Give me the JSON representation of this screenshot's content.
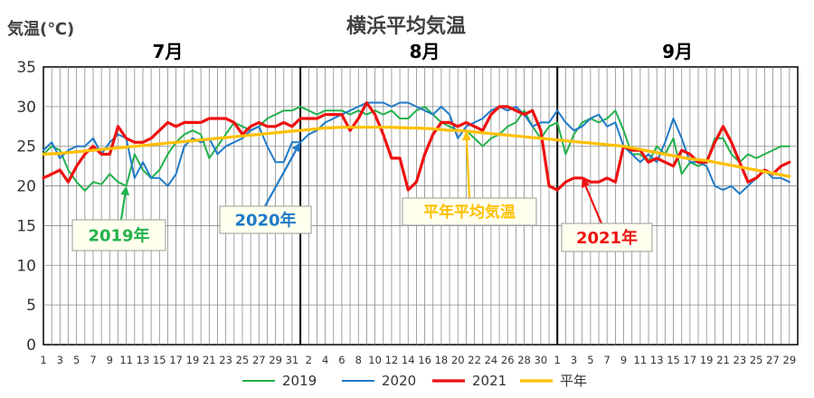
{
  "chart_data": {
    "type": "line",
    "title": "横浜平均気温",
    "ylabel": "気温(℃)",
    "ylim": [
      0,
      35
    ],
    "yticks": [
      0,
      5,
      10,
      15,
      20,
      25,
      30,
      35
    ],
    "grid": true,
    "legend_position": "bottom",
    "months": [
      "7月",
      "8月",
      "9月"
    ],
    "month_lengths": [
      31,
      31,
      30
    ],
    "x_tick_labels": [
      [
        "1",
        "3",
        "5",
        "7",
        "9",
        "11",
        "13",
        "15",
        "17",
        "19",
        "21",
        "23",
        "25",
        "27",
        "29",
        "31"
      ],
      [
        "2",
        "4",
        "6",
        "8",
        "10",
        "12",
        "14",
        "16",
        "18",
        "20",
        "22",
        "24",
        "26",
        "28",
        "30"
      ],
      [
        "1",
        "3",
        "5",
        "7",
        "9",
        "11",
        "13",
        "15",
        "17",
        "19",
        "21",
        "23",
        "25",
        "27",
        "29"
      ]
    ],
    "series": [
      {
        "name": "2019",
        "color": "#22b24c",
        "width": 2,
        "values": [
          24.0,
          25.0,
          24.5,
          22.0,
          20.5,
          19.4,
          20.5,
          20.2,
          21.5,
          20.5,
          20.0,
          24.0,
          22.0,
          21.0,
          22.0,
          24.0,
          25.5,
          26.5,
          27.0,
          26.5,
          23.5,
          25.0,
          26.5,
          28.0,
          27.5,
          27.0,
          27.5,
          28.5,
          29.0,
          29.5,
          29.5,
          30.0,
          29.5,
          29.0,
          29.5,
          29.5,
          29.5,
          29.0,
          29.5,
          29.0,
          29.5,
          29.0,
          29.5,
          28.5,
          28.5,
          29.5,
          30.0,
          29.0,
          28.0,
          27.5,
          27.0,
          27.0,
          26.0,
          25.0,
          26.0,
          26.5,
          27.5,
          28.0,
          29.5,
          27.5,
          26.0,
          27.5,
          28.0,
          24.0,
          26.5,
          28.0,
          28.5,
          28.0,
          28.5,
          29.5,
          27.0,
          24.0,
          24.0,
          23.0,
          25.0,
          24.0,
          26.0,
          21.5,
          23.0,
          22.5,
          23.0,
          26.0,
          26.0,
          24.0,
          23.0,
          24.0,
          23.5,
          24.0,
          24.5,
          25.0,
          25.0
        ]
      },
      {
        "name": "2020",
        "color": "#1f7ac8",
        "width": 2,
        "values": [
          24.5,
          25.5,
          23.5,
          24.5,
          25.0,
          25.0,
          26.0,
          24.0,
          25.5,
          26.5,
          26.0,
          21.0,
          23.0,
          21.0,
          21.0,
          20.0,
          21.5,
          25.0,
          26.0,
          25.5,
          26.0,
          24.0,
          25.0,
          25.5,
          26.0,
          27.0,
          27.5,
          25.0,
          23.0,
          23.0,
          25.5,
          25.5,
          26.5,
          27.0,
          28.0,
          28.5,
          29.0,
          29.5,
          30.0,
          30.5,
          30.5,
          30.5,
          30.0,
          30.5,
          30.5,
          30.0,
          29.5,
          29.0,
          30.0,
          29.0,
          26.0,
          27.5,
          28.0,
          28.5,
          29.5,
          30.0,
          29.5,
          30.0,
          29.0,
          27.5,
          28.0,
          28.0,
          29.5,
          28.0,
          27.0,
          27.5,
          28.5,
          29.0,
          27.5,
          28.0,
          25.0,
          24.0,
          23.0,
          24.0,
          23.0,
          25.5,
          28.5,
          26.0,
          23.0,
          23.0,
          22.5,
          20.0,
          19.5,
          20.0,
          19.0,
          20.0,
          21.0,
          22.0,
          21.0,
          21.0,
          20.5
        ]
      },
      {
        "name": "2021",
        "color": "#ee1111",
        "width": 3.2,
        "values": [
          21.0,
          21.5,
          22.0,
          20.5,
          22.5,
          24.0,
          25.0,
          24.0,
          24.0,
          27.5,
          26.0,
          25.5,
          25.5,
          26.0,
          27.0,
          28.0,
          27.5,
          28.0,
          28.0,
          28.0,
          28.5,
          28.5,
          28.5,
          28.0,
          26.5,
          27.5,
          28.0,
          27.5,
          27.5,
          28.0,
          27.5,
          28.5,
          28.5,
          28.5,
          29.0,
          29.0,
          29.0,
          27.0,
          28.5,
          30.5,
          29.0,
          26.5,
          23.5,
          23.5,
          19.5,
          20.5,
          24.0,
          26.5,
          28.0,
          28.0,
          27.5,
          28.0,
          27.5,
          27.0,
          29.0,
          30.0,
          30.0,
          29.5,
          29.0,
          29.5,
          27.0,
          20.0,
          19.5,
          20.5,
          21.0,
          21.0,
          20.5,
          20.5,
          21.0,
          20.5,
          25.0,
          24.5,
          24.5,
          23.0,
          23.5,
          23.0,
          22.5,
          24.5,
          24.0,
          23.0,
          23.0,
          25.5,
          27.5,
          25.5,
          23.0,
          20.5,
          21.0,
          22.0,
          21.5,
          22.5,
          23.0
        ]
      },
      {
        "name": "平年",
        "color": "#ffc000",
        "width": 3.2,
        "values": [
          24.0,
          24.05,
          24.1,
          24.2,
          24.3,
          24.4,
          24.5,
          24.6,
          24.7,
          24.8,
          24.9,
          25.0,
          25.1,
          25.2,
          25.3,
          25.4,
          25.5,
          25.6,
          25.7,
          25.8,
          25.9,
          26.0,
          26.1,
          26.2,
          26.3,
          26.4,
          26.5,
          26.6,
          26.7,
          26.8,
          26.9,
          27.0,
          27.1,
          27.2,
          27.3,
          27.35,
          27.4,
          27.4,
          27.4,
          27.4,
          27.4,
          27.4,
          27.4,
          27.35,
          27.3,
          27.3,
          27.25,
          27.2,
          27.1,
          27.0,
          27.0,
          26.9,
          26.8,
          26.7,
          26.6,
          26.5,
          26.4,
          26.3,
          26.2,
          26.1,
          26.0,
          25.9,
          25.8,
          25.7,
          25.6,
          25.5,
          25.4,
          25.3,
          25.2,
          25.1,
          25.0,
          24.8,
          24.6,
          24.4,
          24.2,
          24.0,
          23.8,
          23.6,
          23.4,
          23.3,
          23.2,
          23.0,
          22.8,
          22.6,
          22.4,
          22.2,
          22.0,
          21.8,
          21.6,
          21.4,
          21.2
        ]
      }
    ],
    "annotations": [
      {
        "text": "2019年",
        "color": "#22b24c",
        "series": "2019",
        "day": 10
      },
      {
        "text": "2020年",
        "color": "#1f7ac8",
        "series": "2020",
        "day": 31
      },
      {
        "text": "平年平均気温",
        "color": "#ffc000",
        "series": "平年",
        "day": 51
      },
      {
        "text": "2021年",
        "color": "#ee1111",
        "series": "2021",
        "day": 65
      }
    ]
  }
}
